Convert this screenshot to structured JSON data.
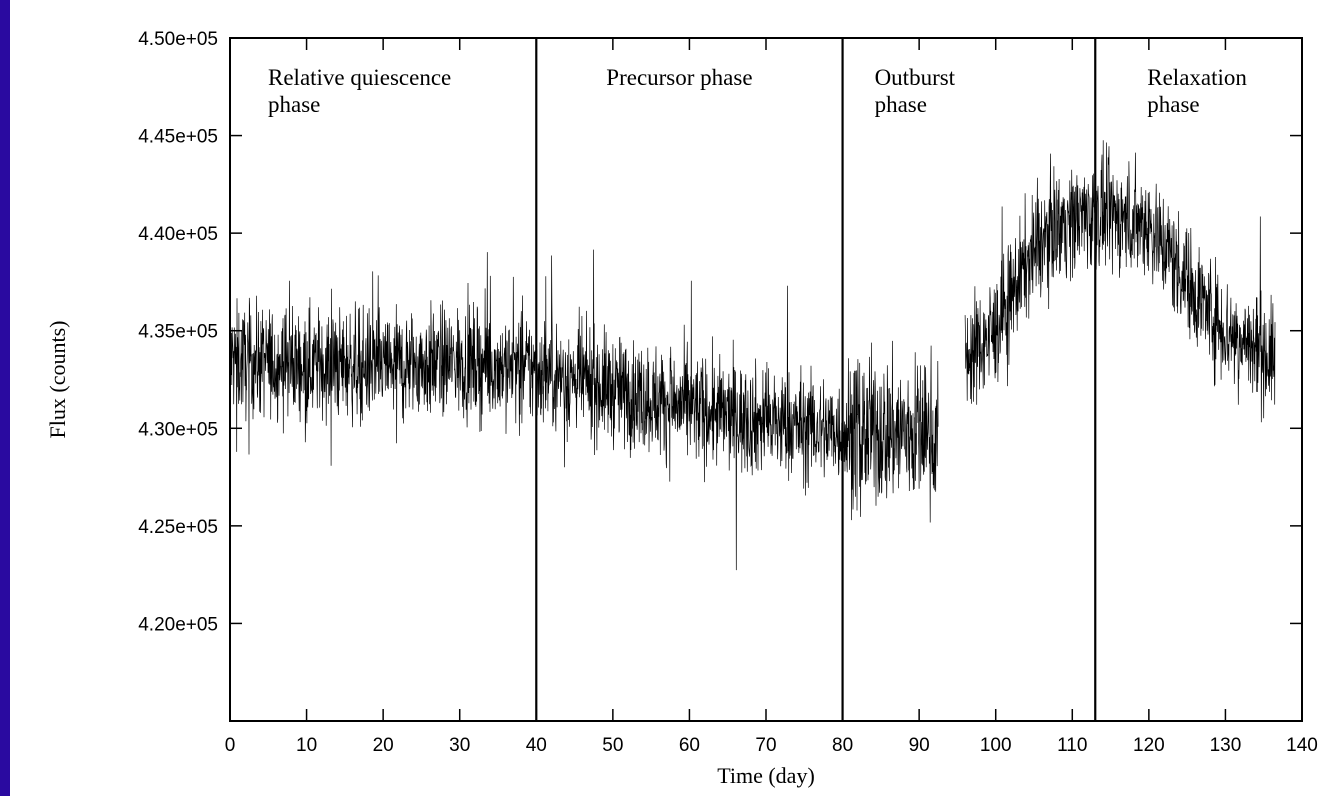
{
  "chart_data": {
    "type": "line",
    "title": "",
    "xlabel": "Time (day)",
    "ylabel": "Flux (counts)",
    "xlim": [
      0,
      140
    ],
    "ylim": [
      415000,
      450000
    ],
    "x_ticks": [
      "0",
      "10",
      "20",
      "30",
      "40",
      "50",
      "60",
      "70",
      "80",
      "90",
      "100",
      "110",
      "120",
      "130",
      "140"
    ],
    "y_ticks": [
      "4.20e+05",
      "4.25e+05",
      "4.30e+05",
      "4.35e+05",
      "4.40e+05",
      "4.45e+05",
      "4.50e+05"
    ],
    "grid": false,
    "line_color": "#000000",
    "phase_boundaries": [
      40,
      80,
      113
    ],
    "phases": [
      {
        "lines": [
          "Relative quiescence",
          "phase"
        ]
      },
      {
        "lines": [
          "Precursor phase"
        ]
      },
      {
        "lines": [
          "Outburst",
          "phase"
        ]
      },
      {
        "lines": [
          "Relaxation",
          "phase"
        ]
      }
    ],
    "series": [
      {
        "segments": [
          {
            "t_start": 0,
            "t_end": 92.5
          },
          {
            "t_start": 96,
            "t_end": 136.5
          }
        ],
        "trend_points": [
          [
            0,
            433500
          ],
          [
            10,
            433300
          ],
          [
            20,
            433200
          ],
          [
            30,
            433400
          ],
          [
            40,
            433000
          ],
          [
            50,
            432000
          ],
          [
            60,
            431000
          ],
          [
            70,
            430300
          ],
          [
            80,
            429800
          ],
          [
            90,
            429800
          ],
          [
            92.5,
            429800
          ],
          [
            96,
            433500
          ],
          [
            100,
            435000
          ],
          [
            104,
            438500
          ],
          [
            108,
            440500
          ],
          [
            113,
            441000
          ],
          [
            120,
            440500
          ],
          [
            126,
            437000
          ],
          [
            130,
            435000
          ],
          [
            136.5,
            433500
          ]
        ],
        "spread": 2000,
        "min": 419500,
        "max": 447500
      }
    ]
  }
}
